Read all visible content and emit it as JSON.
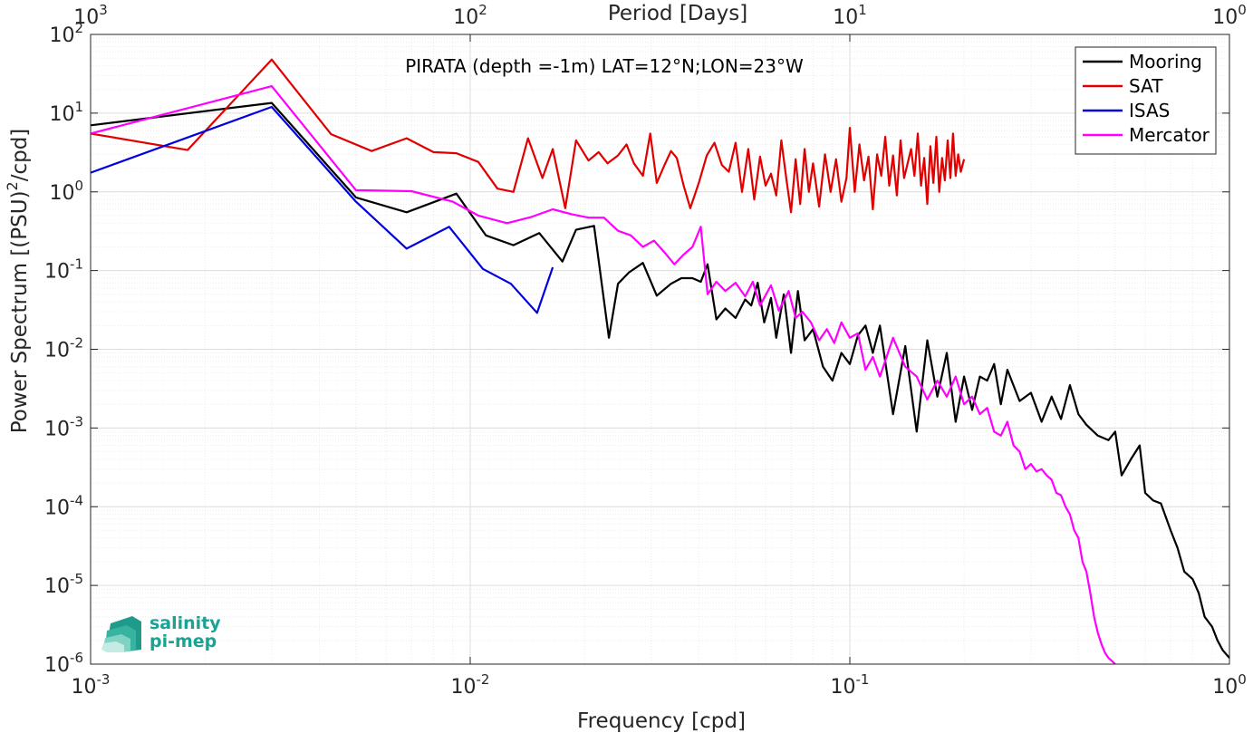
{
  "chart_data": {
    "type": "line",
    "title": "PIRATA (depth =-1m) LAT=12°N;LON=23°W",
    "xlabel": "Frequency [cpd]",
    "ylabel": "Power Spectrum [(PSU)²/cpd]",
    "x2label": "Period [Days]",
    "xscale": "log",
    "yscale": "log",
    "xlim": [
      0.001,
      1
    ],
    "ylim": [
      1e-06,
      100
    ],
    "grid": true,
    "legend_position": "top-right",
    "x_ticks": [
      {
        "base": "10",
        "exp": "-3"
      },
      {
        "base": "10",
        "exp": "-2"
      },
      {
        "base": "10",
        "exp": "-1"
      },
      {
        "base": "10",
        "exp": "0"
      }
    ],
    "x2_ticks": [
      {
        "base": "10",
        "exp": "3"
      },
      {
        "base": "10",
        "exp": "2"
      },
      {
        "base": "10",
        "exp": "1"
      },
      {
        "base": "10",
        "exp": "0"
      }
    ],
    "y_ticks": [
      {
        "base": "10",
        "exp": "-6"
      },
      {
        "base": "10",
        "exp": "-5"
      },
      {
        "base": "10",
        "exp": "-4"
      },
      {
        "base": "10",
        "exp": "-3"
      },
      {
        "base": "10",
        "exp": "-2"
      },
      {
        "base": "10",
        "exp": "-1"
      },
      {
        "base": "10",
        "exp": "0"
      },
      {
        "base": "10",
        "exp": "1"
      },
      {
        "base": "10",
        "exp": "2"
      }
    ],
    "series": [
      {
        "name": "Mooring",
        "color": "#000000",
        "x": [
          0.001,
          0.003,
          0.005,
          0.0068,
          0.0092,
          0.011,
          0.013,
          0.0152,
          0.0175,
          0.019,
          0.0212,
          0.0232,
          0.0245,
          0.0262,
          0.0285,
          0.031,
          0.0338,
          0.036,
          0.0385,
          0.0405,
          0.0422,
          0.0445,
          0.047,
          0.05,
          0.053,
          0.055,
          0.0572,
          0.0595,
          0.062,
          0.064,
          0.067,
          0.07,
          0.073,
          0.076,
          0.08,
          0.085,
          0.09,
          0.095,
          0.1,
          0.105,
          0.11,
          0.115,
          0.12,
          0.13,
          0.14,
          0.15,
          0.16,
          0.17,
          0.18,
          0.19,
          0.2,
          0.21,
          0.22,
          0.23,
          0.24,
          0.25,
          0.26,
          0.28,
          0.3,
          0.32,
          0.34,
          0.36,
          0.38,
          0.4,
          0.42,
          0.45,
          0.48,
          0.5,
          0.52,
          0.55,
          0.58,
          0.6,
          0.63,
          0.66,
          0.7,
          0.73,
          0.76,
          0.8,
          0.83,
          0.86,
          0.9,
          0.93,
          0.96,
          1.0
        ],
        "y": [
          7,
          13.5,
          0.85,
          0.55,
          0.95,
          0.28,
          0.21,
          0.3,
          0.13,
          0.33,
          0.37,
          0.014,
          0.068,
          0.095,
          0.125,
          0.048,
          0.068,
          0.08,
          0.08,
          0.072,
          0.12,
          0.024,
          0.033,
          0.025,
          0.043,
          0.036,
          0.07,
          0.022,
          0.045,
          0.014,
          0.05,
          0.009,
          0.055,
          0.013,
          0.018,
          0.006,
          0.004,
          0.009,
          0.0065,
          0.015,
          0.02,
          0.009,
          0.02,
          0.0015,
          0.011,
          0.0009,
          0.013,
          0.0025,
          0.009,
          0.0012,
          0.0045,
          0.0017,
          0.0045,
          0.004,
          0.0065,
          0.002,
          0.0055,
          0.0022,
          0.0028,
          0.0012,
          0.0025,
          0.0013,
          0.0035,
          0.0015,
          0.0011,
          0.0008,
          0.0007,
          0.0009,
          0.00025,
          0.0004,
          0.0006,
          0.00015,
          0.00012,
          0.00011,
          5e-05,
          3e-05,
          1.5e-05,
          1.2e-05,
          8e-06,
          4e-06,
          3e-06,
          2e-06,
          1.5e-06,
          1.2e-06
        ]
      },
      {
        "name": "SAT",
        "color": "#e00000",
        "x": [
          0.001,
          0.0018,
          0.003,
          0.0043,
          0.0055,
          0.0068,
          0.008,
          0.0092,
          0.0105,
          0.0118,
          0.013,
          0.0142,
          0.0155,
          0.0165,
          0.0178,
          0.019,
          0.0205,
          0.0218,
          0.023,
          0.0245,
          0.0258,
          0.027,
          0.0285,
          0.0298,
          0.031,
          0.0325,
          0.0338,
          0.035,
          0.0365,
          0.038,
          0.04,
          0.042,
          0.044,
          0.046,
          0.048,
          0.05,
          0.052,
          0.054,
          0.056,
          0.058,
          0.06,
          0.062,
          0.064,
          0.066,
          0.068,
          0.07,
          0.072,
          0.074,
          0.076,
          0.078,
          0.08,
          0.083,
          0.086,
          0.089,
          0.092,
          0.095,
          0.098,
          0.1,
          0.103,
          0.106,
          0.109,
          0.112,
          0.115,
          0.118,
          0.121,
          0.124,
          0.127,
          0.13,
          0.133,
          0.136,
          0.139,
          0.142,
          0.145,
          0.148,
          0.151,
          0.154,
          0.157,
          0.16,
          0.163,
          0.166,
          0.169,
          0.172,
          0.175,
          0.178,
          0.181,
          0.184,
          0.187,
          0.19,
          0.193,
          0.196,
          0.2
        ],
        "y": [
          5.5,
          3.4,
          48,
          5.4,
          3.3,
          4.8,
          3.2,
          3.1,
          2.4,
          1.1,
          1.0,
          4.8,
          1.5,
          3.5,
          0.62,
          4.5,
          2.5,
          3.2,
          2.3,
          2.9,
          4.0,
          2.3,
          1.6,
          5.5,
          1.3,
          2.2,
          3.3,
          2.7,
          1.2,
          0.62,
          1.3,
          2.9,
          4.2,
          2.2,
          1.8,
          4.2,
          1.0,
          3.5,
          0.8,
          2.8,
          1.2,
          1.7,
          0.9,
          4.5,
          1.5,
          0.55,
          2.6,
          0.7,
          3.5,
          1.0,
          2.3,
          0.65,
          3.0,
          1.0,
          2.6,
          0.75,
          1.5,
          6.5,
          1.0,
          4.0,
          1.4,
          2.8,
          0.6,
          3.0,
          1.6,
          5.0,
          1.2,
          2.9,
          0.9,
          4.5,
          1.5,
          2.3,
          3.5,
          1.6,
          5.5,
          1.2,
          2.7,
          0.7,
          3.8,
          1.3,
          5.0,
          1.0,
          2.7,
          1.4,
          4.5,
          1.5,
          5.5,
          1.6,
          3.0,
          1.8,
          2.6
        ]
      },
      {
        "name": "ISAS",
        "color": "#0000e0",
        "x": [
          0.001,
          0.003,
          0.005,
          0.0068,
          0.0088,
          0.0108,
          0.0128,
          0.015,
          0.0165
        ],
        "y": [
          1.75,
          12,
          0.75,
          0.19,
          0.36,
          0.105,
          0.068,
          0.029,
          0.11
        ]
      },
      {
        "name": "Mercator",
        "color": "#ff00ff",
        "x": [
          0.001,
          0.003,
          0.005,
          0.007,
          0.009,
          0.0105,
          0.0125,
          0.0145,
          0.0165,
          0.0185,
          0.0205,
          0.0225,
          0.0245,
          0.0265,
          0.0285,
          0.0305,
          0.0325,
          0.0345,
          0.0365,
          0.0385,
          0.0405,
          0.0422,
          0.0445,
          0.047,
          0.05,
          0.053,
          0.0555,
          0.058,
          0.062,
          0.065,
          0.069,
          0.072,
          0.075,
          0.079,
          0.083,
          0.087,
          0.091,
          0.095,
          0.1,
          0.105,
          0.11,
          0.115,
          0.12,
          0.13,
          0.14,
          0.15,
          0.16,
          0.17,
          0.18,
          0.19,
          0.2,
          0.21,
          0.22,
          0.23,
          0.24,
          0.25,
          0.26,
          0.27,
          0.28,
          0.29,
          0.3,
          0.31,
          0.32,
          0.33,
          0.34,
          0.35,
          0.36,
          0.37,
          0.38,
          0.39,
          0.4,
          0.41,
          0.42,
          0.43,
          0.44,
          0.45,
          0.46,
          0.47,
          0.48,
          0.49,
          0.5
        ],
        "y": [
          5.5,
          22,
          1.05,
          1.02,
          0.75,
          0.5,
          0.4,
          0.48,
          0.6,
          0.52,
          0.47,
          0.47,
          0.32,
          0.28,
          0.2,
          0.24,
          0.17,
          0.12,
          0.16,
          0.2,
          0.36,
          0.05,
          0.072,
          0.055,
          0.07,
          0.047,
          0.072,
          0.036,
          0.065,
          0.031,
          0.055,
          0.025,
          0.03,
          0.022,
          0.013,
          0.018,
          0.012,
          0.022,
          0.014,
          0.016,
          0.0055,
          0.008,
          0.0045,
          0.014,
          0.006,
          0.0045,
          0.0023,
          0.004,
          0.0025,
          0.0045,
          0.002,
          0.0025,
          0.0015,
          0.0018,
          0.0009,
          0.0008,
          0.0012,
          0.0006,
          0.0005,
          0.0003,
          0.00035,
          0.00028,
          0.0003,
          0.00025,
          0.00022,
          0.00015,
          0.00014,
          0.0001,
          8e-05,
          5e-05,
          4e-05,
          2e-05,
          1.5e-05,
          8e-06,
          4e-06,
          2.5e-06,
          1.8e-06,
          1.4e-06,
          1.2e-06,
          1.1e-06,
          1e-06
        ]
      }
    ]
  },
  "logo": {
    "line1": "salinity",
    "line2": "pi-mep"
  }
}
